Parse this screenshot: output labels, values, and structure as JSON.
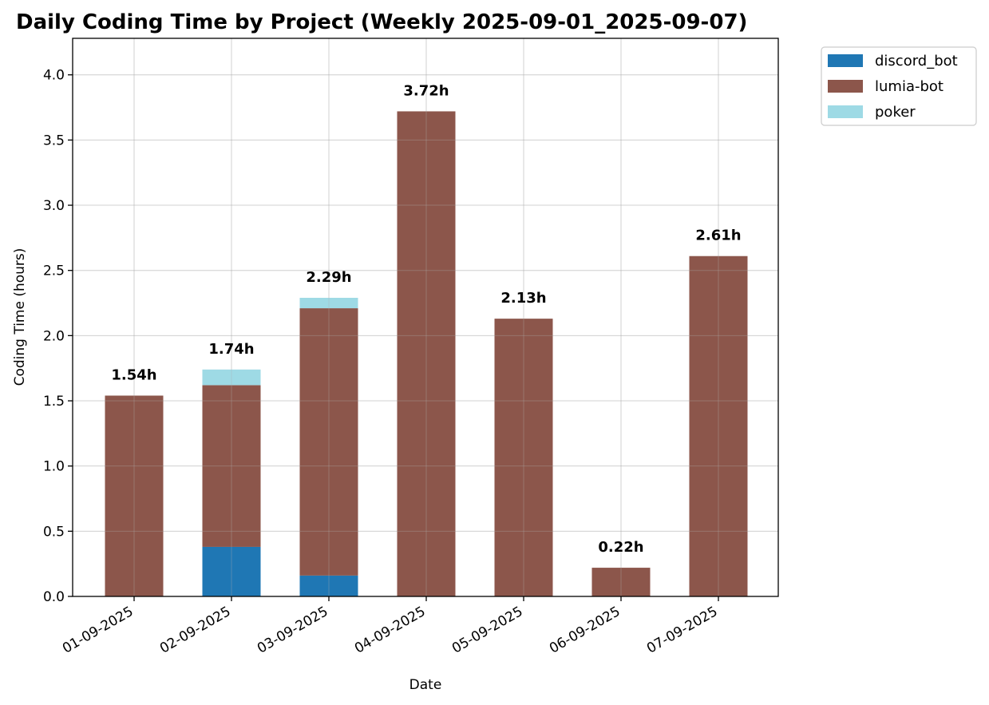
{
  "chart_data": {
    "type": "bar",
    "stacked": true,
    "title": "Daily Coding Time by Project (Weekly 2025-09-01_2025-09-07)",
    "xlabel": "Date",
    "ylabel": "Coding Time (hours)",
    "ylim": [
      0,
      4.28
    ],
    "yticks": [
      "0.0",
      "0.5",
      "1.0",
      "1.5",
      "2.0",
      "2.5",
      "3.0",
      "3.5",
      "4.0"
    ],
    "grid": true,
    "legend_position": "outside-top-right",
    "categories": [
      "01-09-2025",
      "02-09-2025",
      "03-09-2025",
      "04-09-2025",
      "05-09-2025",
      "06-09-2025",
      "07-09-2025"
    ],
    "series": [
      {
        "name": "discord_bot",
        "color": "#1f77b4",
        "values": [
          0,
          0.38,
          0.16,
          0,
          0,
          0,
          0
        ]
      },
      {
        "name": "lumia-bot",
        "color": "#8c564b",
        "values": [
          1.54,
          1.24,
          2.05,
          3.72,
          2.13,
          0.22,
          2.61
        ]
      },
      {
        "name": "poker",
        "color": "#9edae5",
        "values": [
          0,
          0.12,
          0.08,
          0,
          0,
          0,
          0
        ]
      }
    ],
    "totals_labels": [
      "1.54h",
      "1.74h",
      "2.29h",
      "3.72h",
      "2.13h",
      "0.22h",
      "2.61h"
    ]
  }
}
